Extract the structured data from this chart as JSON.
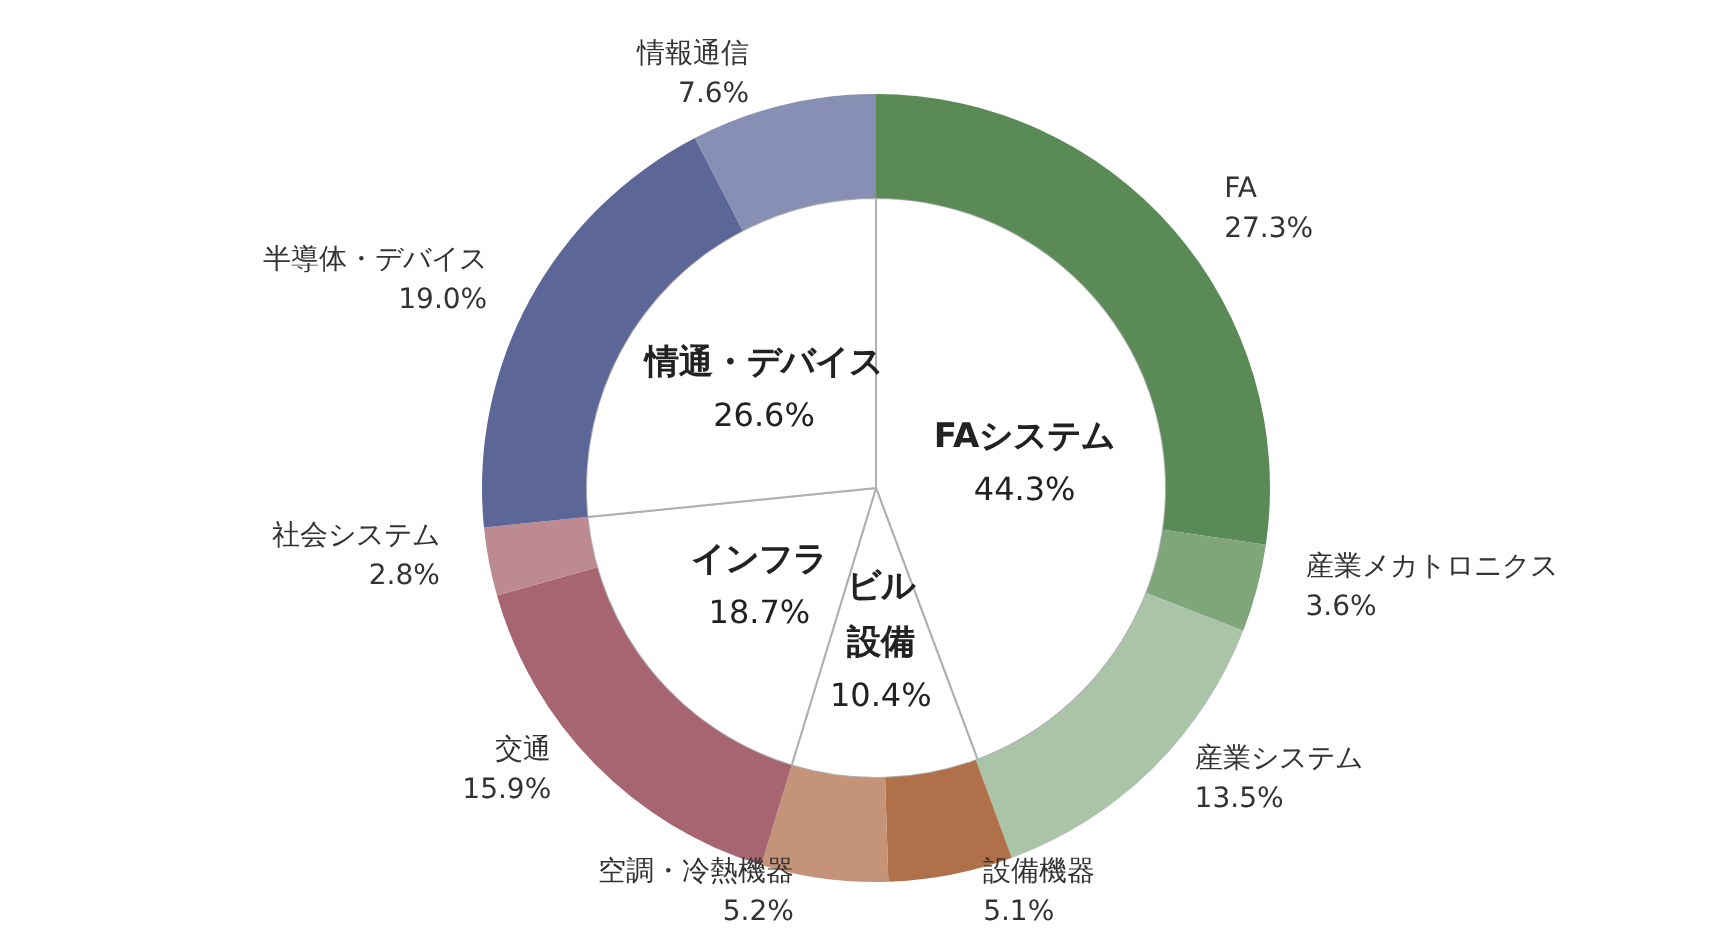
{
  "chart_data": [
    {
      "type": "pie",
      "categories": [
        "FAシステム",
        "ビル設備",
        "インフラ",
        "情通・デバイス"
      ],
      "values": [
        44.3,
        10.4,
        18.7,
        26.6
      ],
      "value_labels": [
        "44.3%",
        "10.4%",
        "18.7%",
        "26.6%"
      ],
      "colors": [
        "#ffffff",
        "#ffffff",
        "#ffffff",
        "#ffffff"
      ],
      "legend": false
    },
    {
      "type": "donut",
      "categories": [
        "FA",
        "産業メカトロニクス",
        "産業システム",
        "設備機器",
        "空調・冷熱機器",
        "交通",
        "社会システム",
        "半導体・デバイス",
        "情報通信"
      ],
      "values": [
        27.3,
        3.6,
        13.5,
        5.1,
        5.2,
        15.9,
        2.8,
        19.0,
        7.6
      ],
      "value_labels": [
        "27.3%",
        "3.6%",
        "13.5%",
        "5.1%",
        "5.2%",
        "15.9%",
        "2.8%",
        "19.0%",
        "7.6%"
      ],
      "colors": [
        "#5a8a55",
        "#7fa57b",
        "#aac4a8",
        "#b0704a",
        "#c49378",
        "#a66570",
        "#bd8a92",
        "#5d6797",
        "#8790b4"
      ],
      "legend": false
    }
  ]
}
